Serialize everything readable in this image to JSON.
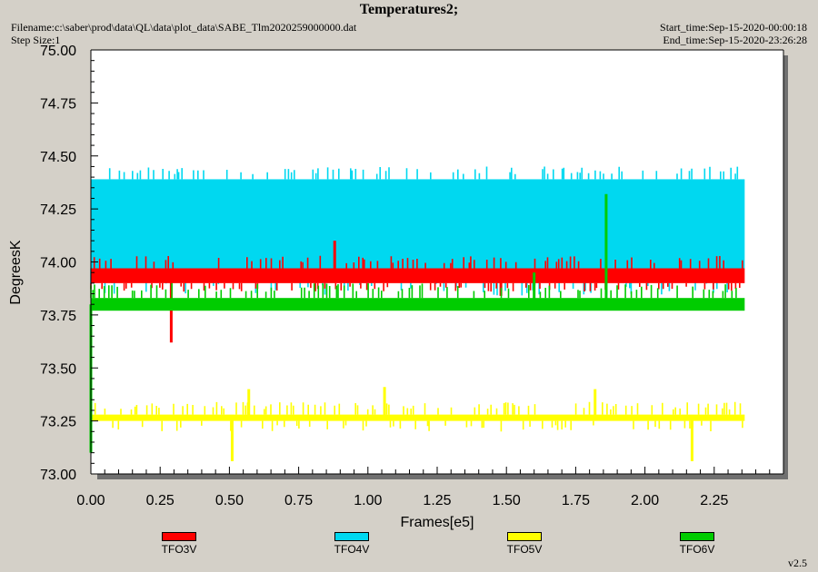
{
  "header": {
    "title": "Temperatures2;",
    "filename": "Filename:c:\\saber\\prod\\data\\QL\\data\\plot_data\\SABE_Tlm2020259000000.dat",
    "step_size": "Step Size:1",
    "start_time": "Start_time:Sep-15-2020-00:00:18",
    "end_time": "End_time:Sep-15-2020-23:26:28"
  },
  "version": "v2.5",
  "colors": {
    "background": "#d4d0c8",
    "plot_area": "#ffffff",
    "shadow": "#707070"
  },
  "chart_data": {
    "type": "line",
    "title": "Temperatures2;",
    "xlabel": "Frames[e5]",
    "ylabel": "DegreesK",
    "xlim": [
      0.0,
      2.5
    ],
    "ylim": [
      73.0,
      75.0
    ],
    "x_ticks": [
      "0.00",
      "0.25",
      "0.50",
      "0.75",
      "1.00",
      "1.25",
      "1.50",
      "1.75",
      "2.00",
      "2.25"
    ],
    "y_ticks": [
      "73.00",
      "73.25",
      "73.50",
      "73.75",
      "74.00",
      "74.25",
      "74.50",
      "74.75",
      "75.00"
    ],
    "grid": false,
    "legend_position": "bottom",
    "series": [
      {
        "name": "TFO3V",
        "color": "#ff0000",
        "x_range": [
          0.0,
          2.36
        ],
        "band": [
          73.9,
          73.97
        ],
        "noise_high": 74.03,
        "noise_low": 73.86,
        "spikes": [
          {
            "x": 0.29,
            "y": 73.62
          },
          {
            "x": 0.88,
            "y": 74.1
          },
          {
            "x": 1.48,
            "y": 73.84
          }
        ]
      },
      {
        "name": "TFO4V",
        "color": "#00d8f0",
        "x_range": [
          0.0,
          2.36
        ],
        "band": [
          73.97,
          74.39
        ],
        "noise_high": 74.45,
        "noise_low": 73.84,
        "spikes": []
      },
      {
        "name": "TFO5V",
        "color": "#ffff00",
        "x_range": [
          0.0,
          2.36
        ],
        "band": [
          73.25,
          73.28
        ],
        "noise_high": 73.34,
        "noise_low": 73.2,
        "spikes": [
          {
            "x": 0.51,
            "y": 73.06
          },
          {
            "x": 2.17,
            "y": 73.06
          },
          {
            "x": 0.57,
            "y": 73.4
          },
          {
            "x": 1.06,
            "y": 73.41
          },
          {
            "x": 1.82,
            "y": 73.4
          }
        ]
      },
      {
        "name": "TFO6V",
        "color": "#00cc00",
        "x_range": [
          0.0,
          2.36
        ],
        "band": [
          73.77,
          73.83
        ],
        "noise_high": 73.9,
        "noise_low": 73.77,
        "spikes": [
          {
            "x": 1.86,
            "y": 74.32
          },
          {
            "x": 1.6,
            "y": 73.95
          },
          {
            "x": 0.0,
            "y": 73.1
          }
        ]
      }
    ]
  }
}
